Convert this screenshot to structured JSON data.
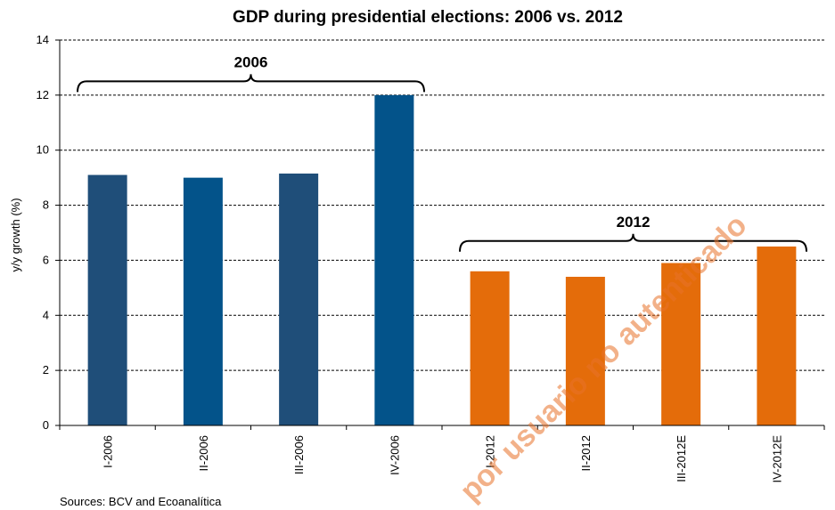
{
  "source": "Sources: BCV and Ecoanalítica",
  "watermark": "por usuario no autenticado",
  "colors": {
    "dark_blue": "#1f4e79",
    "blue": "#03538a",
    "orange": "#e46c0a"
  },
  "chart_data": {
    "type": "bar",
    "title": "GDP during presidential elections: 2006 vs. 2012",
    "xlabel": "",
    "ylabel": "y/y growth  (%)",
    "ylim": [
      0,
      14
    ],
    "yticks": [
      0,
      2,
      4,
      6,
      8,
      10,
      12,
      14
    ],
    "grid": true,
    "categories": [
      "I-2006",
      "II-2006",
      "III-2006",
      "IV-2006",
      "I-2012",
      "II-2012",
      "III-2012E",
      "IV-2012E"
    ],
    "values": [
      9.1,
      9.0,
      9.15,
      12.0,
      5.6,
      5.4,
      5.9,
      6.5
    ],
    "bar_colors": [
      "#1f4e79",
      "#03538a",
      "#1f4e79",
      "#03538a",
      "#e46c0a",
      "#e46c0a",
      "#e46c0a",
      "#e46c0a"
    ],
    "annotations": [
      {
        "text": "2006",
        "from": 0,
        "to": 3,
        "level": 12.5
      },
      {
        "text": "2012",
        "from": 4,
        "to": 7,
        "level": 6.7
      }
    ]
  }
}
